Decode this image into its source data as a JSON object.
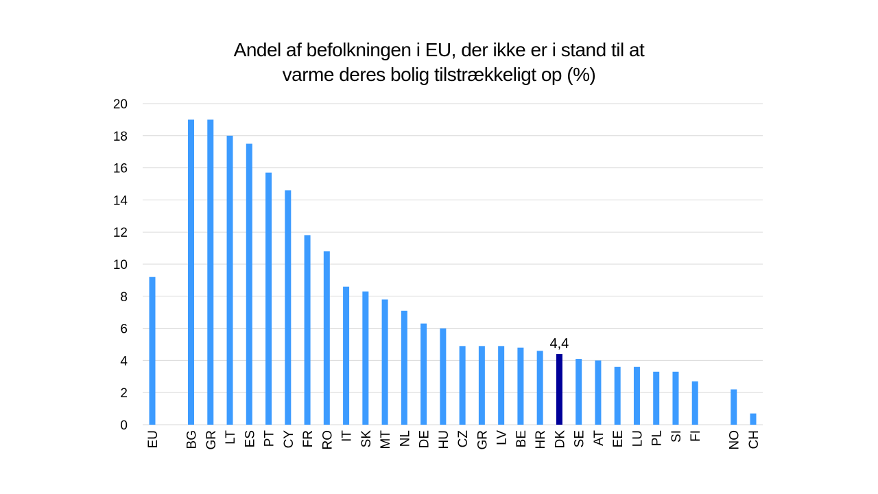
{
  "chart_data": {
    "type": "bar",
    "title_line1": "Andel af befolkningen i EU, der ikke er i stand til at",
    "title_line2": "varme deres bolig tilstrækkeligt op (%)",
    "xlabel": "",
    "ylabel": "",
    "ylim": [
      0,
      20
    ],
    "yticks": [
      "0",
      "2",
      "4",
      "6",
      "8",
      "10",
      "12",
      "14",
      "16",
      "18",
      "20"
    ],
    "grid": true,
    "categories": [
      "EU",
      "",
      "BG",
      "GR",
      "LT",
      "ES",
      "PT",
      "CY",
      "FR",
      "RO",
      "IT",
      "SK",
      "MT",
      "NL",
      "DE",
      "HU",
      "CZ",
      "GR",
      "LV",
      "BE",
      "HR",
      "DK",
      "SE",
      "AT",
      "EE",
      "LU",
      "PL",
      "SI",
      "FI",
      "",
      "NO",
      "CH"
    ],
    "values": [
      9.2,
      null,
      19.0,
      19.0,
      18.0,
      17.5,
      15.7,
      14.6,
      11.8,
      10.8,
      8.6,
      8.3,
      7.8,
      7.1,
      6.3,
      6.0,
      4.9,
      4.9,
      4.9,
      4.8,
      4.6,
      4.4,
      4.1,
      4.0,
      3.6,
      3.6,
      3.3,
      3.3,
      2.7,
      null,
      2.2,
      0.7
    ],
    "highlight": {
      "category": "DK",
      "label": "4,4"
    },
    "colors": {
      "bar": "#3c9bff",
      "highlight": "#000099",
      "grid": "#d9d9d9"
    }
  }
}
